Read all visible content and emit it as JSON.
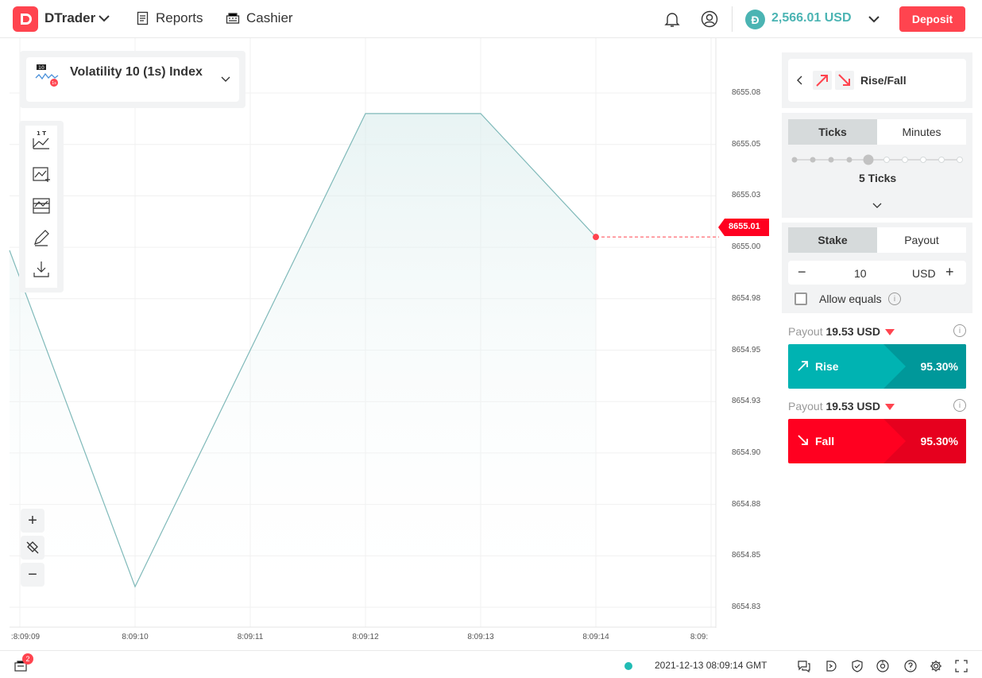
{
  "header": {
    "app_name": "DTrader",
    "nav": {
      "reports": "Reports",
      "cashier": "Cashier"
    },
    "balance": "2,566.01 USD",
    "deposit": "Deposit"
  },
  "chart": {
    "symbol": "Volatility 10 (1s) Index",
    "current_price": "8655.01",
    "y_ticks": [
      "8655.08",
      "8655.05",
      "8655.03",
      "8655.00",
      "8654.98",
      "8654.95",
      "8654.93",
      "8654.90",
      "8654.88",
      "8654.85",
      "8654.83"
    ],
    "x_ticks": [
      ":8:09:09",
      "8:09:10",
      "8:09:11",
      "8:09:12",
      "8:09:13",
      "8:09:14",
      "8:09:"
    ]
  },
  "chart_data": {
    "type": "area",
    "x": [
      "8:09:09",
      "8:09:10",
      "8:09:12",
      "8:09:13",
      "8:09:14"
    ],
    "values": [
      8654.99,
      8654.84,
      8655.07,
      8655.07,
      8655.01
    ],
    "ylim": [
      8654.82,
      8655.09
    ],
    "grid": true
  },
  "trade": {
    "type": "Rise/Fall",
    "duration_tabs": {
      "ticks": "Ticks",
      "minutes": "Minutes"
    },
    "ticks_value": "5 Ticks",
    "stake_tabs": {
      "stake": "Stake",
      "payout": "Payout"
    },
    "amount": "10",
    "currency": "USD",
    "allow_equals": "Allow equals",
    "rise": {
      "payout_label": "Payout",
      "payout_value": "19.53 USD",
      "label": "Rise",
      "percent": "95.30%"
    },
    "fall": {
      "payout_label": "Payout",
      "payout_value": "19.53 USD",
      "label": "Fall",
      "percent": "95.30%"
    }
  },
  "footer": {
    "notifications_count": "2",
    "datetime": "2021-12-13 08:09:14 GMT"
  }
}
